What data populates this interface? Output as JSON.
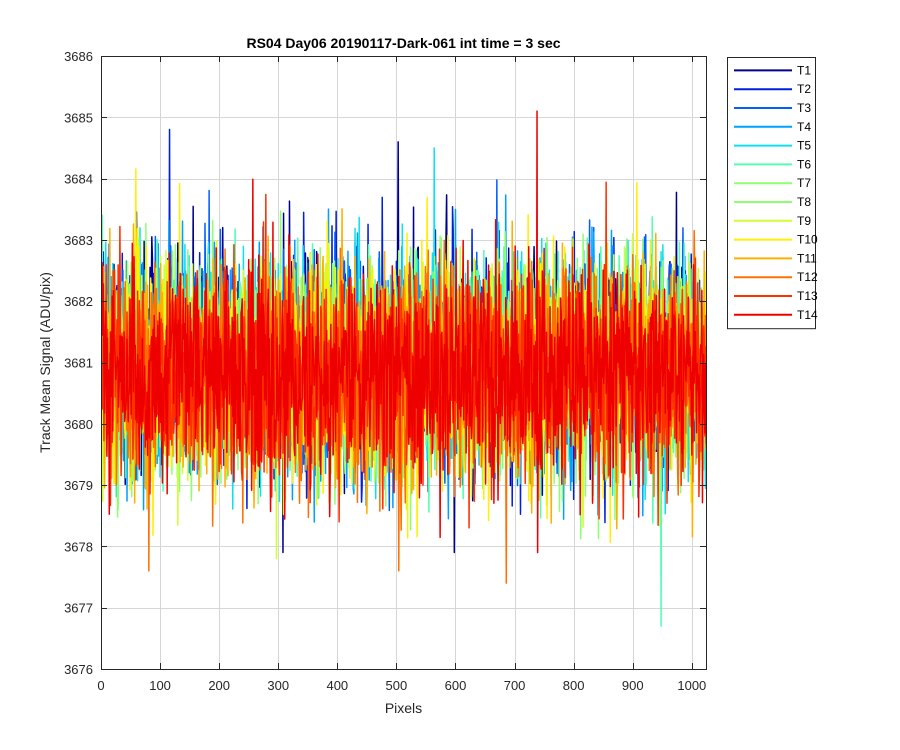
{
  "chart_data": {
    "type": "line",
    "title": "RS04 Day06 20190117-Dark-061 int time = 3 sec",
    "xlabel": "Pixels",
    "ylabel": "Track Mean Signal (ADU/pix)",
    "xlim": [
      0,
      1024
    ],
    "ylim": [
      3676,
      3686
    ],
    "xticks": [
      0,
      100,
      200,
      300,
      400,
      500,
      600,
      700,
      800,
      900,
      1000
    ],
    "yticks": [
      3676,
      3677,
      3678,
      3679,
      3680,
      3681,
      3682,
      3683,
      3684,
      3685,
      3686
    ],
    "grid": true,
    "legend_position": "outside-top-right",
    "series_summary": {
      "n_points_per_series": 1024,
      "approx_mean": 3680.9,
      "approx_std": 0.9,
      "approx_min": 3676.7,
      "approx_max": 3685.1
    },
    "series": [
      {
        "name": "T1",
        "color": "#00008f",
        "mean": 3681.05,
        "std": 0.85
      },
      {
        "name": "T2",
        "color": "#0020e0",
        "mean": 3681.0,
        "std": 0.85
      },
      {
        "name": "T3",
        "color": "#0060ff",
        "mean": 3681.0,
        "std": 0.85
      },
      {
        "name": "T4",
        "color": "#00a0ff",
        "mean": 3680.95,
        "std": 0.85
      },
      {
        "name": "T5",
        "color": "#10dfef",
        "mean": 3680.95,
        "std": 0.85
      },
      {
        "name": "T6",
        "color": "#50ffaf",
        "mean": 3680.95,
        "std": 0.85
      },
      {
        "name": "T7",
        "color": "#8fff70",
        "mean": 3680.9,
        "std": 0.85
      },
      {
        "name": "T8",
        "color": "#8fff70",
        "mean": 3680.9,
        "std": 0.85
      },
      {
        "name": "T9",
        "color": "#cfff30",
        "mean": 3680.9,
        "std": 0.85
      },
      {
        "name": "T10",
        "color": "#ffef00",
        "mean": 3680.9,
        "std": 0.85
      },
      {
        "name": "T11",
        "color": "#ffaf00",
        "mean": 3680.85,
        "std": 0.85
      },
      {
        "name": "T12",
        "color": "#ff7000",
        "mean": 3680.8,
        "std": 0.85
      },
      {
        "name": "T13",
        "color": "#ff3000",
        "mean": 3680.8,
        "std": 0.85
      },
      {
        "name": "T14",
        "color": "#ef0000",
        "mean": 3680.8,
        "std": 0.85
      }
    ],
    "notable_points": [
      {
        "series": "T14",
        "x": 737,
        "y": 3685.1
      },
      {
        "series": "T2",
        "x": 115,
        "y": 3684.8
      },
      {
        "series": "T1",
        "x": 502,
        "y": 3684.6
      },
      {
        "series": "T5",
        "x": 563,
        "y": 3684.5
      },
      {
        "series": "T6",
        "x": 947,
        "y": 3676.7
      },
      {
        "series": "T12",
        "x": 685,
        "y": 3677.4
      },
      {
        "series": "T12",
        "x": 503,
        "y": 3677.6
      },
      {
        "series": "T12",
        "x": 80,
        "y": 3677.6
      },
      {
        "series": "T9",
        "x": 296,
        "y": 3677.8
      },
      {
        "series": "T1",
        "x": 307,
        "y": 3677.9
      },
      {
        "series": "T1",
        "x": 597,
        "y": 3677.9
      },
      {
        "series": "T14",
        "x": 738,
        "y": 3677.9
      }
    ]
  }
}
